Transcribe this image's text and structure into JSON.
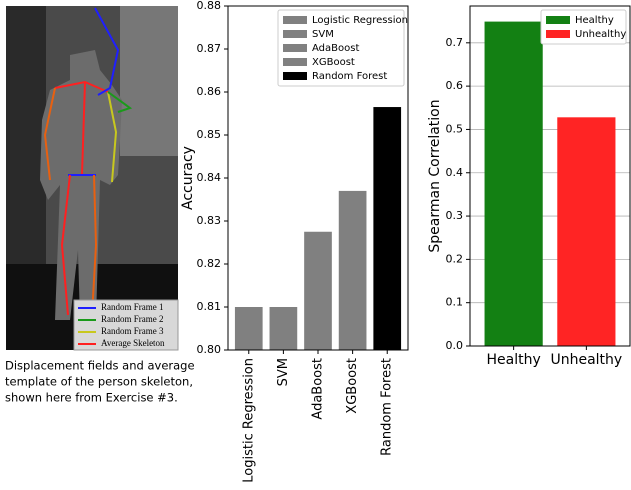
{
  "figure_panel": {
    "legend": [
      {
        "label": "Random Frame 1",
        "color": "#1f1fff"
      },
      {
        "label": "Random Frame 2",
        "color": "#1a9a1a"
      },
      {
        "label": "Random Frame 3",
        "color": "#c8c81e"
      },
      {
        "label": "Average Skeleton",
        "color": "#ff2020"
      }
    ],
    "caption": [
      "Displacement fields and average",
      "template of the person skeleton,",
      "shown here from Exercise #3."
    ]
  },
  "chart_data": [
    {
      "type": "bar",
      "y_label": "Accuracy",
      "categories": [
        "Logistic Regression",
        "SVM",
        "AdaBoost",
        "XGBoost",
        "Random Forest"
      ],
      "values": [
        0.81,
        0.81,
        0.8275,
        0.837,
        0.8565
      ],
      "colors": [
        "#808080",
        "#808080",
        "#808080",
        "#808080",
        "#000000"
      ],
      "ylim": [
        0.8,
        0.88
      ],
      "yticks": [
        {
          "value": 0.8,
          "label": "0.80"
        },
        0.81,
        0.82,
        0.83,
        0.84,
        0.85,
        0.86,
        0.87,
        0.88
      ],
      "xtick_rotation": 90,
      "grid": false,
      "legend": "upper right"
    },
    {
      "type": "bar",
      "y_label": "Spearman Correlation",
      "categories": [
        "Healthy",
        "Unhealthy"
      ],
      "values": [
        0.749,
        0.528
      ],
      "colors": [
        "#138013",
        "#ff2424"
      ],
      "ylim": [
        0,
        0.785
      ],
      "yticks": [
        {
          "value": 0,
          "label": "0.0"
        },
        0.1,
        0.2,
        0.3,
        0.4,
        0.5,
        0.6,
        0.7
      ],
      "xtick_rotation": 0,
      "grid": true,
      "legend": "upper right"
    }
  ]
}
